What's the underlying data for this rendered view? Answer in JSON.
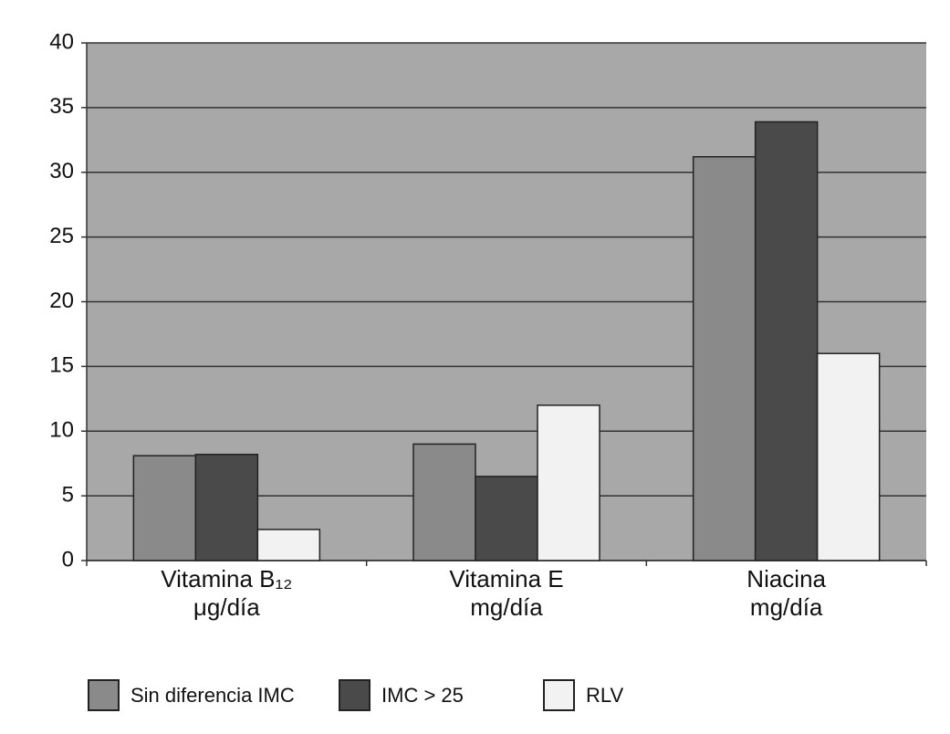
{
  "chart_data": {
    "type": "bar",
    "categories": [
      [
        "Vitamina B₁₂",
        "μg/día"
      ],
      [
        "Vitamina E",
        "mg/día"
      ],
      [
        "Niacina",
        "mg/día"
      ]
    ],
    "series": [
      {
        "name": "Sin diferencia IMC",
        "color": "#8a8a8a",
        "values": [
          8.1,
          9.0,
          31.2
        ]
      },
      {
        "name": "IMC > 25",
        "color": "#4a4a4a",
        "values": [
          8.2,
          6.5,
          33.9
        ]
      },
      {
        "name": "RLV",
        "color": "#f2f2f2",
        "values": [
          2.4,
          12.0,
          16.0
        ]
      }
    ],
    "ylim": [
      0,
      40
    ],
    "yticks": [
      0,
      5,
      10,
      15,
      20,
      25,
      30,
      35,
      40
    ],
    "grid": true,
    "plot_background": "#a8a8a8",
    "legend": "bottom"
  }
}
